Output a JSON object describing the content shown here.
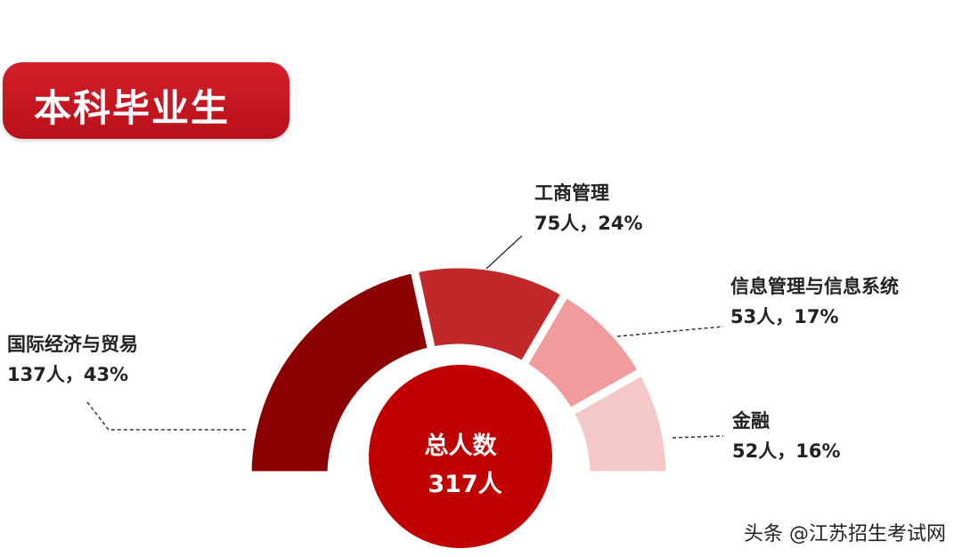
{
  "title": "本科毕业生",
  "chart_data": {
    "type": "pie",
    "variant": "semi-donut",
    "categories": [
      "国际经济与贸易",
      "工商管理",
      "信息管理与信息系统",
      "金融"
    ],
    "values": [
      137,
      75,
      53,
      52
    ],
    "percents": [
      43,
      24,
      17,
      16
    ],
    "value_labels": [
      "137人，43%",
      "75人，24%",
      "53人，17%",
      "52人，16%"
    ],
    "colors": [
      "#8b0000",
      "#c0282a",
      "#f09c9c",
      "#f5c8c8"
    ],
    "center": {
      "label": "总人数",
      "value": "317人",
      "color": "#c00000"
    }
  },
  "watermark": "头条 @江苏招生考试网"
}
